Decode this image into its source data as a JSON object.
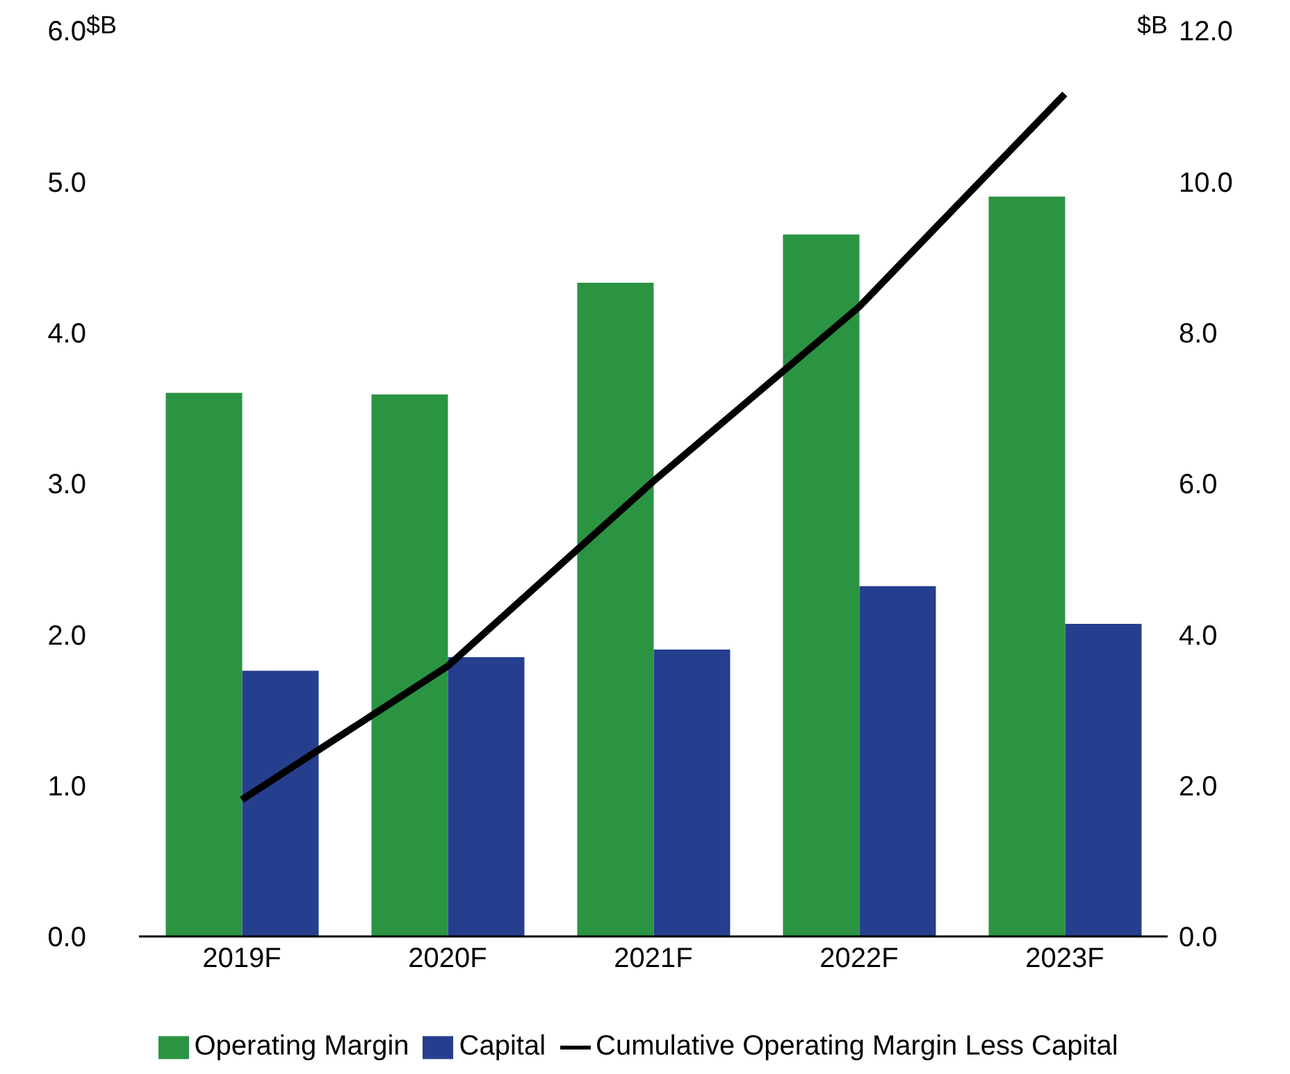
{
  "chart_data": {
    "type": "bar",
    "ylabel": "$B",
    "y2label": "$B",
    "categories": [
      "2019F",
      "2020F",
      "2021F",
      "2022F",
      "2023F"
    ],
    "series": [
      {
        "name": "Operating Margin",
        "color": "#2a9443",
        "values": [
          3.6,
          3.59,
          4.33,
          4.65,
          4.9
        ]
      },
      {
        "name": "Capital",
        "color": "#253f8e",
        "values": [
          1.76,
          1.85,
          1.9,
          2.32,
          2.07
        ]
      },
      {
        "name": "Cumulative Operating Margin Less Capital",
        "type": "line",
        "axis": "y2",
        "color": "#000000",
        "values": [
          1.81,
          3.58,
          6.03,
          8.34,
          11.16
        ]
      }
    ],
    "ylim": [
      0,
      6
    ],
    "yticks": [
      {
        "value": 0,
        "label": "0.0"
      },
      {
        "value": 1,
        "label": "1.0"
      },
      {
        "value": 2,
        "label": "2.0"
      },
      {
        "value": 3,
        "label": "3.0"
      },
      {
        "value": 4,
        "label": "4.0"
      },
      {
        "value": 5,
        "label": "5.0"
      },
      {
        "value": 6,
        "label": "6.0"
      }
    ],
    "y2lim": [
      0,
      12
    ],
    "y2ticks": [
      {
        "value": 0,
        "label": "0.0"
      },
      {
        "value": 2,
        "label": "2.0"
      },
      {
        "value": 4,
        "label": "4.0"
      },
      {
        "value": 6,
        "label": "6.0"
      },
      {
        "value": 8,
        "label": "8.0"
      },
      {
        "value": 10,
        "label": "10.0"
      },
      {
        "value": 12,
        "label": "12.0"
      }
    ],
    "legend": "bottom",
    "marker": "none"
  }
}
